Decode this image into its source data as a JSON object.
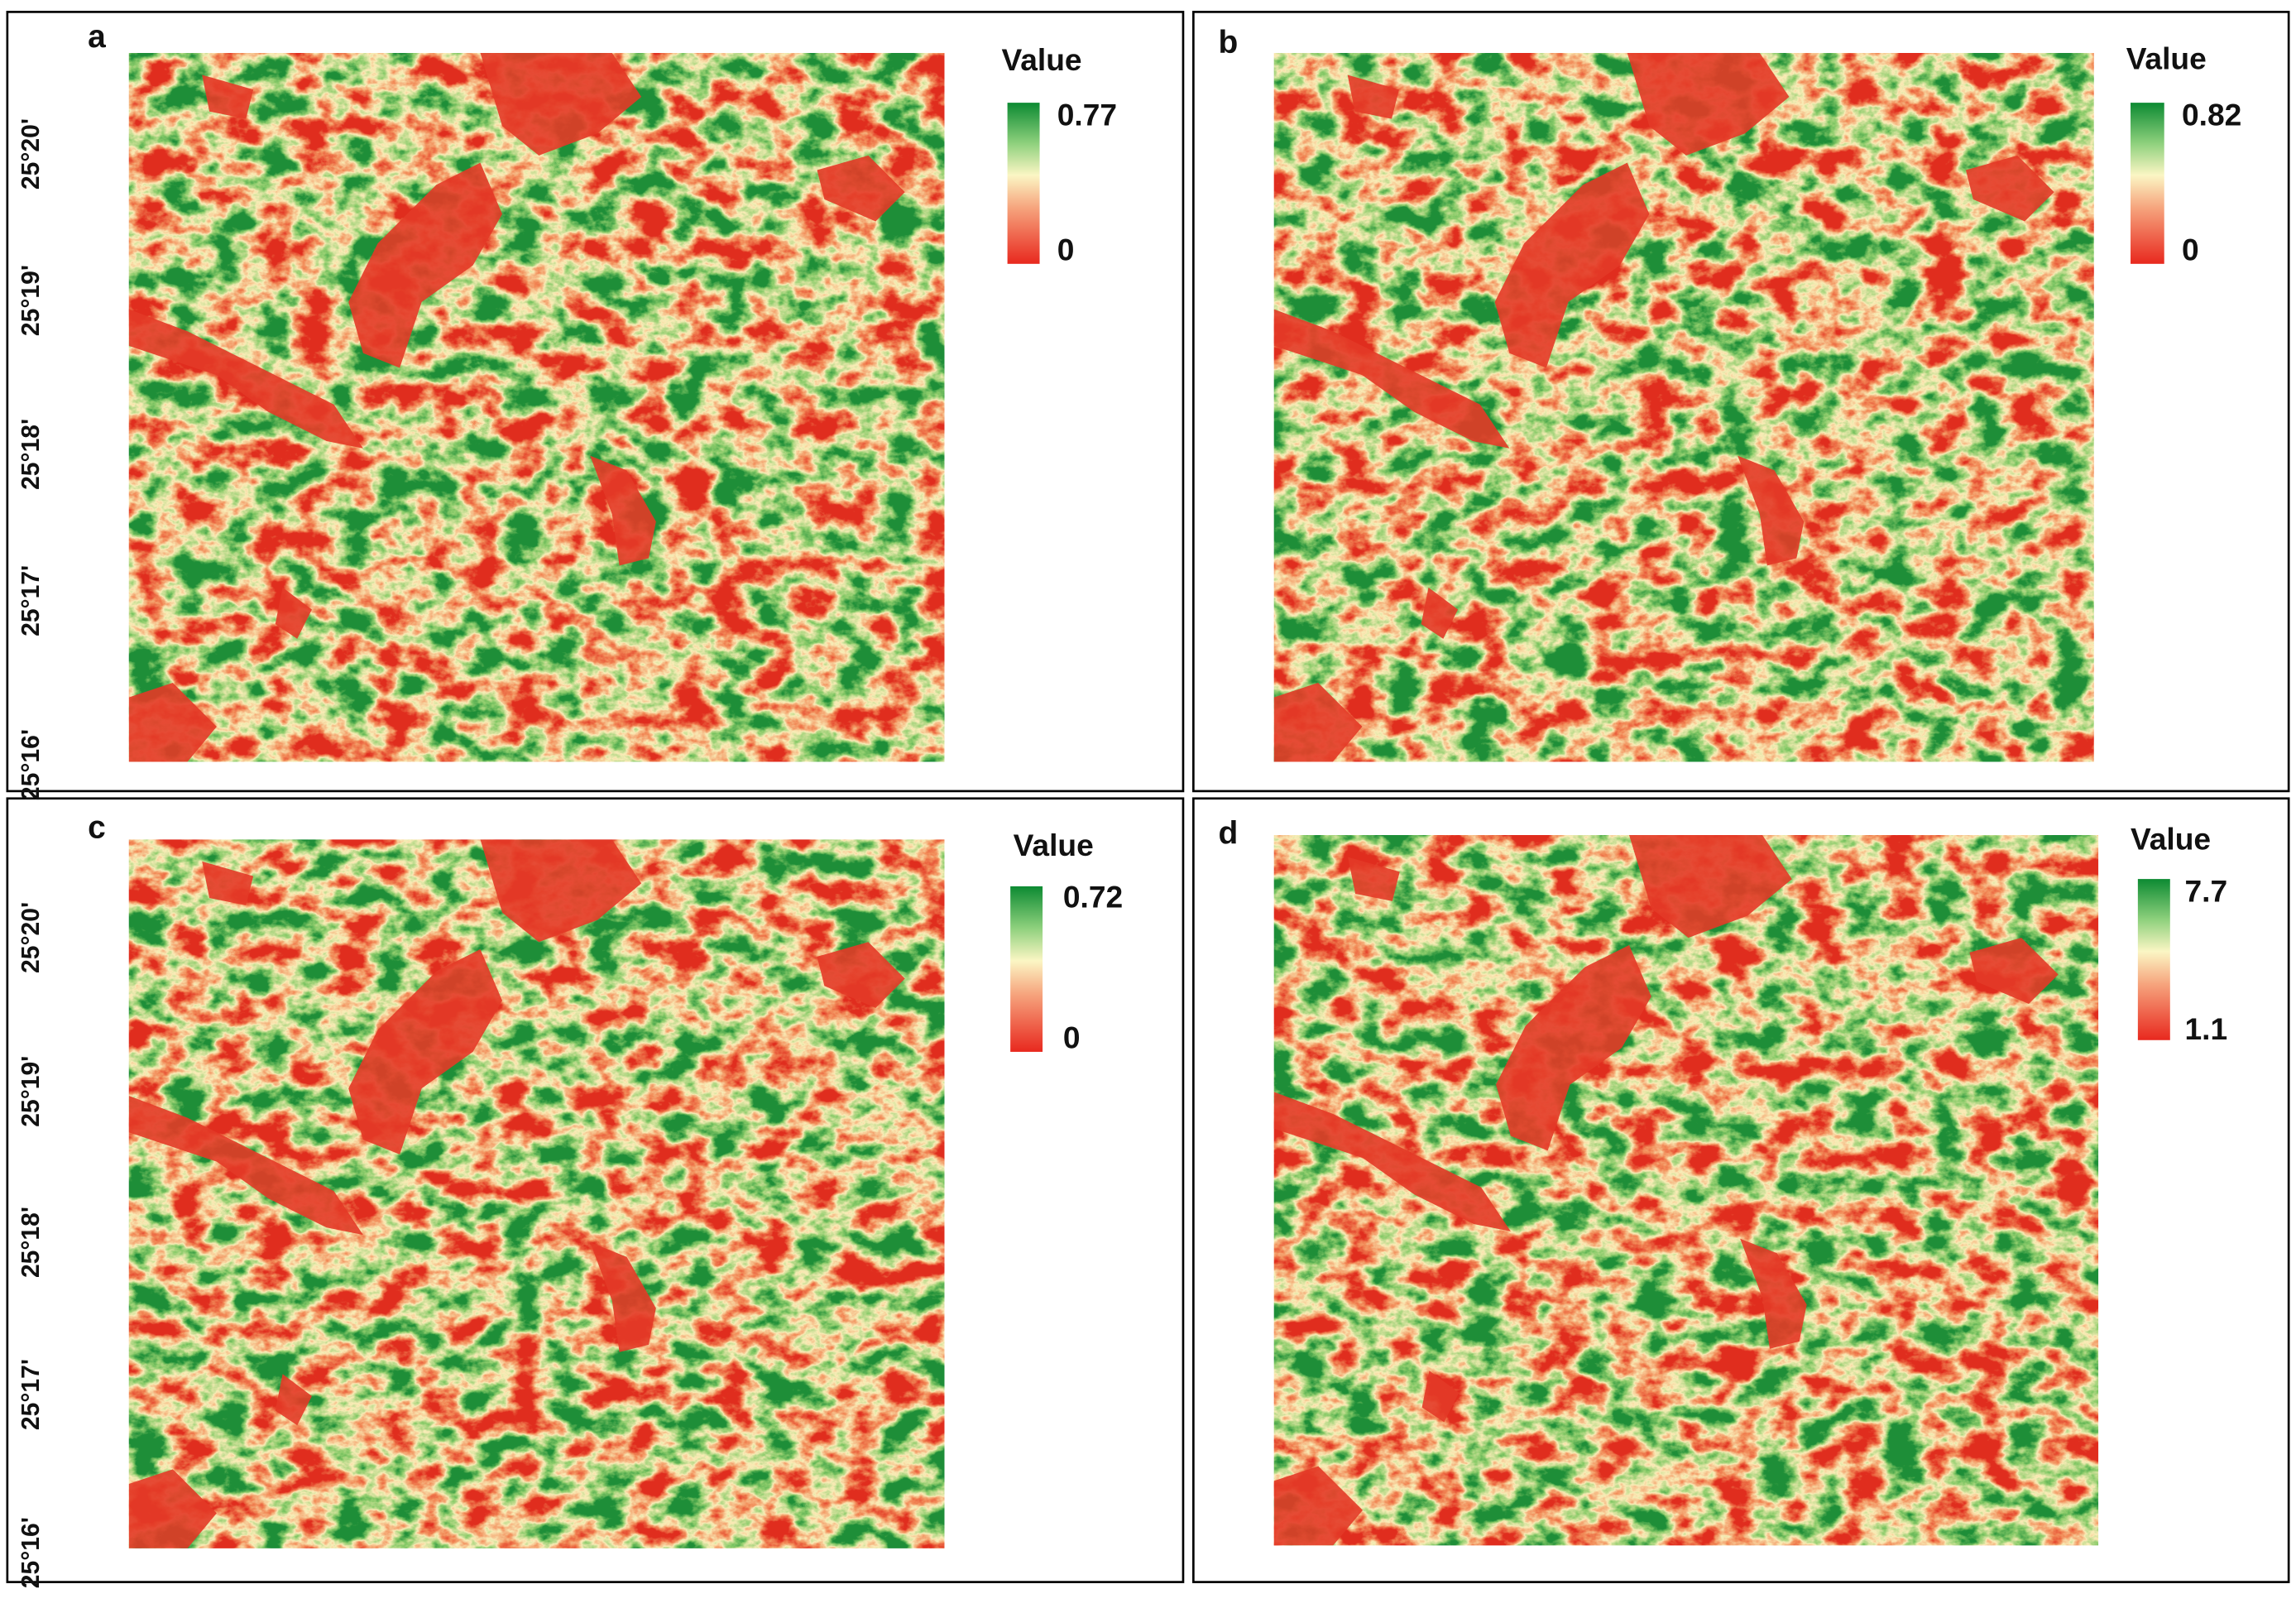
{
  "panels": [
    {
      "label": "a",
      "legend": {
        "title": "Value",
        "max": "0.77",
        "min": "0"
      }
    },
    {
      "label": "b",
      "legend": {
        "title": "Value",
        "max": "0.82",
        "min": "0"
      }
    },
    {
      "label": "c",
      "legend": {
        "title": "Value",
        "max": "0.72",
        "min": "0"
      }
    },
    {
      "label": "d",
      "legend": {
        "title": "Value",
        "max": "7.7",
        "min": "1.1"
      }
    }
  ],
  "latitude_labels": {
    "top": [
      "25°20'",
      "25°19'",
      "25°18'",
      "25°17'",
      "25°16'"
    ],
    "bottom": [
      "25°20'",
      "25°19'",
      "25°18'",
      "25°17'",
      "25°16'"
    ]
  }
}
